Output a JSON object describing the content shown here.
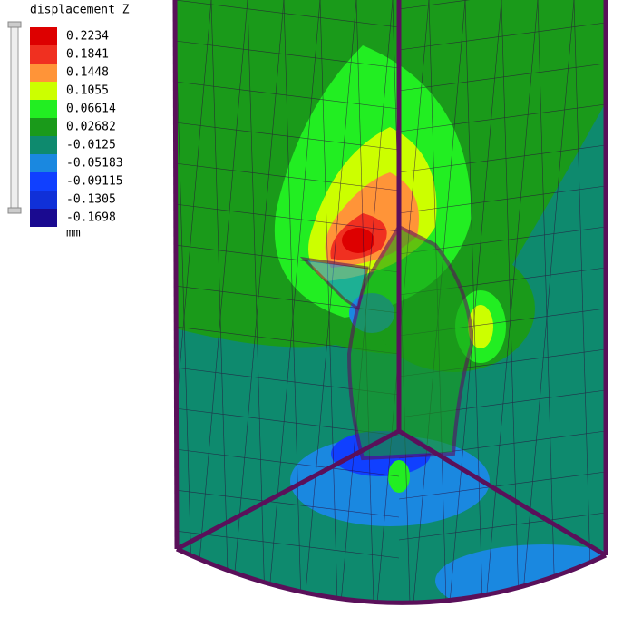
{
  "legend": {
    "title": "displacement Z",
    "entries": [
      {
        "label": 0.2234,
        "color": "#dd0000"
      },
      {
        "label": 0.1841,
        "color": "#f03020"
      },
      {
        "label": 0.1448,
        "color": "#ff9438"
      },
      {
        "label": 0.1055,
        "color": "#ccff00"
      },
      {
        "label": 0.06614,
        "color": "#22ee22"
      },
      {
        "label": 0.02682,
        "color": "#1a9a1a"
      },
      {
        "label": -0.0125,
        "color": "#0e8a6e"
      },
      {
        "label": -0.05183,
        "color": "#1a88e0"
      },
      {
        "label": -0.09115,
        "color": "#1040ff"
      },
      {
        "label": -0.1305,
        "color": "#1030d8"
      },
      {
        "label": -0.1698,
        "color": "#1a0a90"
      }
    ],
    "unit": "mm"
  }
}
